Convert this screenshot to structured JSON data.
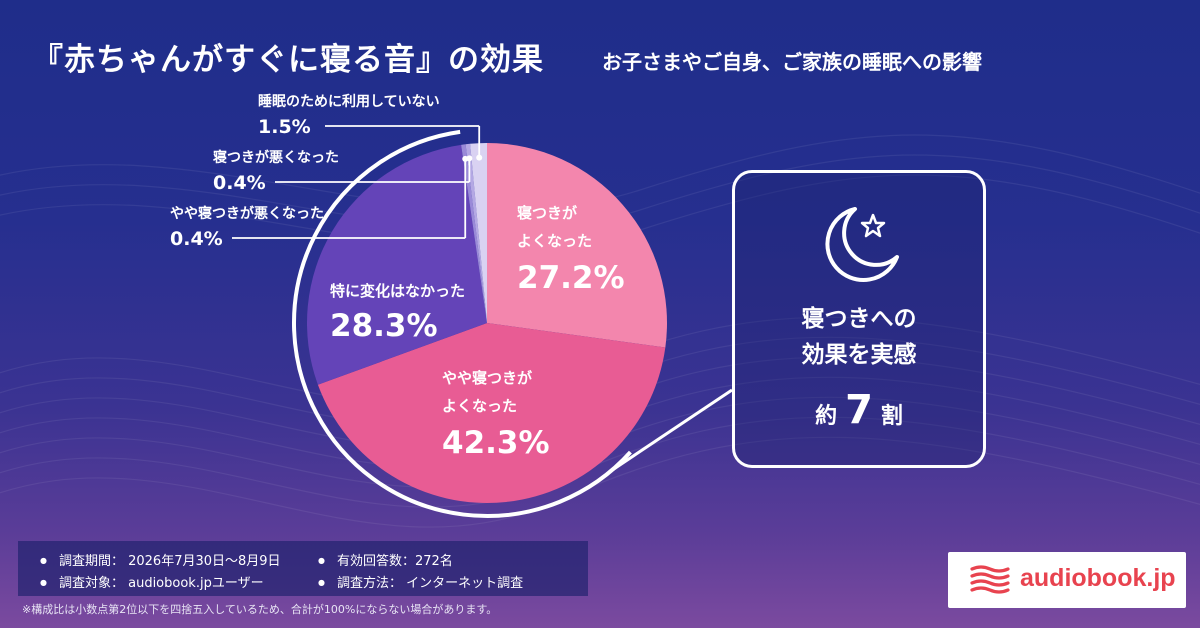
{
  "title": "『赤ちゃんがすぐに寝る音』の効果",
  "subtitle": "お子さまやご自身、ご家族の睡眠への影響",
  "chart_data": {
    "type": "pie",
    "title": "『赤ちゃんがすぐに寝る音』の効果",
    "subtitle": "お子さまやご自身、ご家族の睡眠への影響",
    "unit": "%",
    "slices": [
      {
        "label": "寝つきがよくなった",
        "label_lines": [
          "寝つきが",
          "よくなった"
        ],
        "value": 27.2,
        "value_label": "27.2%",
        "color": "#f386ad"
      },
      {
        "label": "やや寝つきがよくなった",
        "label_lines": [
          "やや寝つきが",
          "よくなった"
        ],
        "value": 42.3,
        "value_label": "42.3%",
        "color": "#e85c94"
      },
      {
        "label": "特に変化はなかった",
        "label_lines": [
          "特に変化はなかった"
        ],
        "value": 28.3,
        "value_label": "28.3%",
        "color": "#6444b8"
      },
      {
        "label": "やや寝つきが悪くなった",
        "label_lines": [
          "やや寝つきが悪くなった"
        ],
        "value": 0.4,
        "value_label": "0.4%",
        "color": "#9a8ad8"
      },
      {
        "label": "寝つきが悪くなった",
        "label_lines": [
          "寝つきが悪くなった"
        ],
        "value": 0.4,
        "value_label": "0.4%",
        "color": "#b4a8e4"
      },
      {
        "label": "睡眠のために利用していない",
        "label_lines": [
          "睡眠のために利用していない"
        ],
        "value": 1.5,
        "value_label": "1.5%",
        "color": "#d9d2f2"
      }
    ]
  },
  "effect": {
    "line1": "寝つきへの",
    "line2": "効果を実感",
    "prefix": "約",
    "number": "7",
    "suffix": "割",
    "icon": "moon-star-icon"
  },
  "survey": {
    "period": "調査期間： 2026年7月30日～8月9日",
    "responses": "有効回答数：272名",
    "target": "調査対象： audiobook.jpユーザー",
    "method": "調査方法： インターネット調査"
  },
  "footnote": "※構成比は小数点第2位以下を四捨五入しているため、合計が100%にならない場合があります。",
  "logo": {
    "text": "audiobook.jp",
    "color": "#e8434f"
  }
}
